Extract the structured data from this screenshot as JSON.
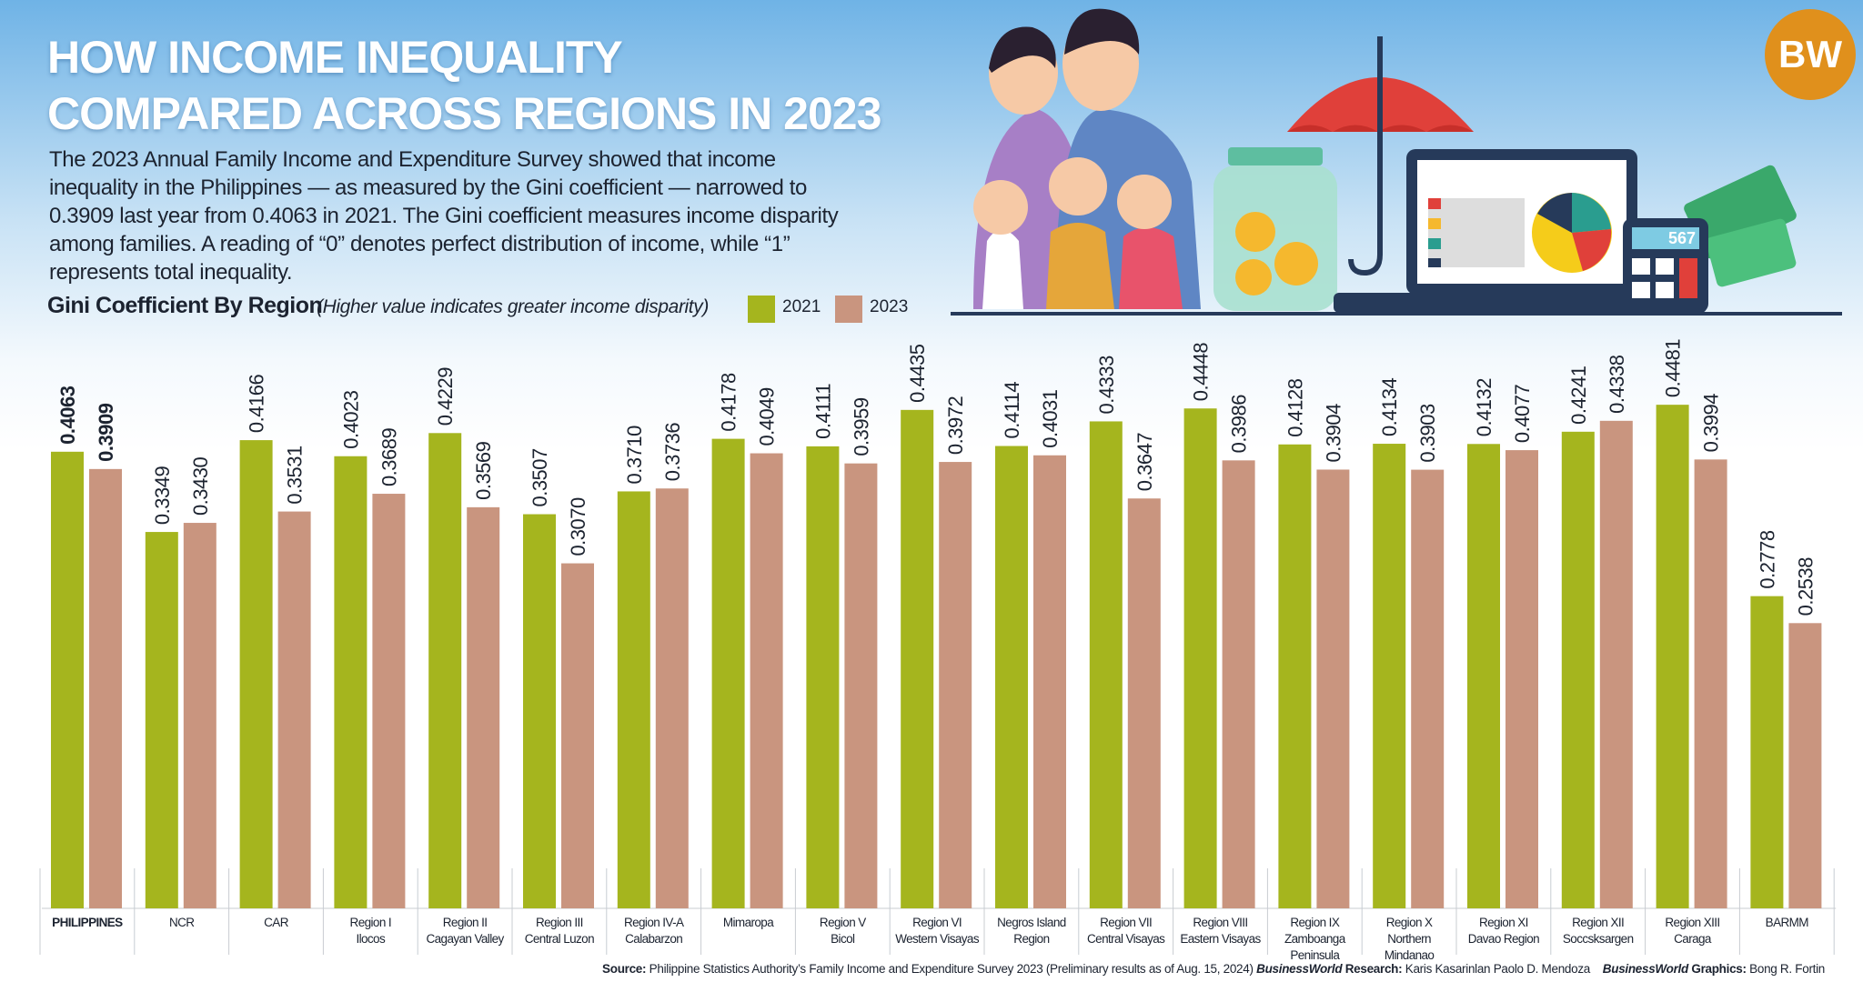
{
  "header": {
    "title_line1": "HOW INCOME INEQUALITY",
    "title_line2": "COMPARED ACROSS REGIONS IN 2023",
    "description": "The 2023 Annual Family Income and Expenditure Survey showed that income inequality in the Philippines — as measured by the Gini coefficient — narrowed to 0.3909 last year from 0.4063 in 2021. The Gini coefficient measures income disparity among families. A reading of “0” denotes perfect distribution of income, while “1” represents total inequality.",
    "logo": "BW"
  },
  "illustration": {
    "calculator": "567"
  },
  "chart_data": {
    "type": "bar",
    "title": "Gini Coefficient By Region",
    "subtitle": "(Higher value indicates greater income disparity)",
    "categories": [
      "PHILIPPINES",
      "NCR",
      "CAR",
      "Region I\nIlocos",
      "Region II\nCagayan Valley",
      "Region III\nCentral Luzon",
      "Region IV-A\nCalabarzon",
      "Mimaropa",
      "Region V\nBicol",
      "Region VI\nWestern Visayas",
      "Negros Island\nRegion",
      "Region VII\nCentral Visayas",
      "Region VIII\nEastern Visayas",
      "Region IX\nZamboanga Peninsula",
      "Region X\nNorthern Mindanao",
      "Region XI\nDavao Region",
      "Region XII\nSoccsksargen",
      "Region XIII\nCaraga",
      "BARMM"
    ],
    "series": [
      {
        "name": "2021",
        "color": "#a5b51e",
        "values": [
          0.4063,
          0.3349,
          0.4166,
          0.4023,
          0.4229,
          0.3507,
          0.371,
          0.4178,
          0.4111,
          0.4435,
          0.4114,
          0.4333,
          0.4448,
          0.4128,
          0.4134,
          0.4132,
          0.4241,
          0.4481,
          0.2778
        ],
        "value_labels": [
          "0.4063",
          "0.3349",
          "0.4166",
          "0.4023",
          "0.4229",
          "0.3507",
          "0.3710",
          "0.4178",
          "0.4111",
          "0.4435",
          "0.4114",
          "0.4333",
          "0.4448",
          "0.4128",
          "0.4134",
          "0.4132",
          "0.4241",
          "0.4481",
          "0.2778"
        ]
      },
      {
        "name": "2023",
        "color": "#c9957f",
        "values": [
          0.3909,
          0.343,
          0.3531,
          0.3689,
          0.3569,
          0.307,
          0.3736,
          0.4049,
          0.3959,
          0.3972,
          0.4031,
          0.3647,
          0.3986,
          0.3904,
          0.3903,
          0.4077,
          0.4338,
          0.3994,
          0.2538
        ],
        "value_labels": [
          "0.3909",
          "0.3430",
          "0.3531",
          "0.3689",
          "0.3569",
          "0.3070",
          "0.3736",
          "0.4049",
          "0.3959",
          "0.3972",
          "0.4031",
          "0.3647",
          "0.3986",
          "0.3904",
          "0.3903",
          "0.4077",
          "0.4338",
          "0.3994",
          "0.2538"
        ]
      }
    ],
    "ylim": [
      0,
      0.5
    ]
  },
  "footer": {
    "source_label": "Source:",
    "source": "Philippine Statistics Authority’s Family Income and Expenditure Survey 2023 (Preliminary results as of Aug. 15, 2024)",
    "research_brand": "BusinessWorld",
    "research_label": "Research:",
    "research": "Karis Kasarinlan Paolo D. Mendoza",
    "graphics_brand": "BusinessWorld",
    "graphics_label": "Graphics:",
    "graphics": "Bong R. Fortin"
  }
}
